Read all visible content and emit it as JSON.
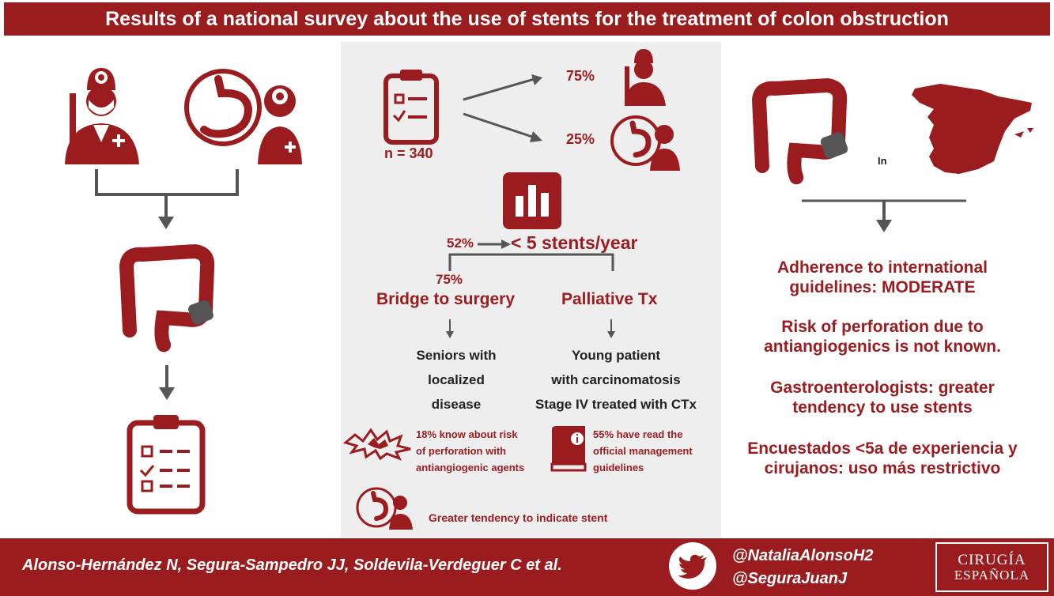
{
  "title": "Results of a national survey about the use of stents for the treatment of colon obstruction",
  "colors": {
    "accent": "#9b1c1f",
    "panel": "#eeeeee",
    "arrow": "#555555"
  },
  "left_flow": {
    "icons": [
      "surgeon-icon",
      "gastroenterologist-icon",
      "colon-stent-icon",
      "survey-clipboard-icon"
    ]
  },
  "survey": {
    "sample": "n = 340",
    "surgeons_pct": "75%",
    "gastro_pct": "25%"
  },
  "stents": {
    "pct": "52%",
    "label": "< 5 stents/year",
    "bridge_pct": "75%",
    "bridge_label": "Bridge to surgery",
    "palliative_label": "Palliative Tx",
    "bridge_indication": [
      "Seniors with",
      "localized",
      "disease"
    ],
    "palliative_indication": [
      "Young patient",
      "with carcinomatosis",
      "Stage IV treated with CTx"
    ]
  },
  "facts": {
    "risk_knowledge": [
      "18% know about risk",
      "of perforation with",
      "antiangiogenic agents"
    ],
    "guidelines_read": [
      "55% have read the",
      "official management",
      "guidelines"
    ],
    "tendency": "Greater tendency to indicate stent"
  },
  "right_column": {
    "map_word": "In",
    "conclusions": [
      [
        "Adherence to international",
        "guidelines: MODERATE"
      ],
      [
        "Risk of perforation due to",
        "antiangiogenics is not known."
      ],
      [
        "Gastroenterologists: greater",
        "tendency to use stents"
      ],
      [
        "Encuestados <5a de experiencia y",
        "cirujanos: uso más restrictivo"
      ]
    ]
  },
  "footer": {
    "authors": "Alonso-Hernández N, Segura-Sampedro JJ, Soldevila-Verdeguer C et al.",
    "handle1": "@NataliaAlonsoH2",
    "handle2": "@SeguraJuanJ",
    "journal_line1": "CIRUGÍA",
    "journal_line2": "ESPAÑOLA"
  }
}
